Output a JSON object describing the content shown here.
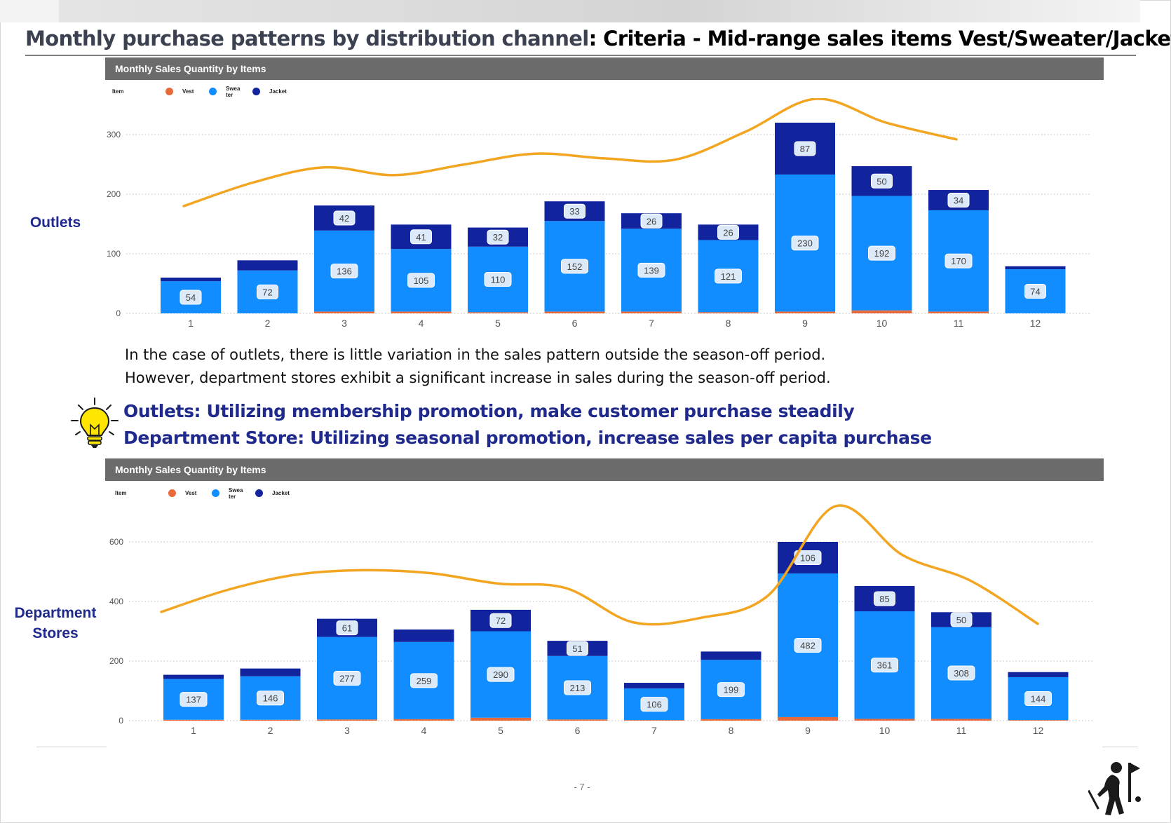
{
  "page": {
    "title_part1": "Monthly purchase patterns by distribution channel",
    "title_part2": ": Criteria - Mid-range sales items Vest/Sweater/Jacket",
    "page_number": "- 7 -",
    "logo_icon": "golfer-logo-icon",
    "bulb_icon": "lightbulb-icon"
  },
  "text": {
    "line1": "In the case of outlets, there is little variation in the sales pattern outside the season-off period.",
    "line2": "However, department stores exhibit a significant increase in sales during the season-off period.",
    "insight1": "Outlets: Utilizing membership promotion, make customer purchase steadily",
    "insight2": "Department Store: Utilizing seasonal promotion, increase sales per capita purchase"
  },
  "legend": {
    "title": "Item",
    "vest": "Vest",
    "sweater_a": "Swea",
    "sweater_b": "ter",
    "jacket": "Jacket"
  },
  "colors": {
    "vest": "#e8693a",
    "sweater": "#118dff",
    "jacket": "#12239e",
    "trend": "#f2a521",
    "header": "#6b6b6b",
    "label_blue": "#1f2a8c"
  },
  "chart_data": [
    {
      "type": "bar",
      "stacked": true,
      "title": "Monthly Sales Quantity by Items",
      "side_label": [
        "Outlets"
      ],
      "legend_title": "Item",
      "legend_position": "top-left",
      "categories": [
        "1",
        "2",
        "3",
        "4",
        "5",
        "6",
        "7",
        "8",
        "9",
        "10",
        "11",
        "12"
      ],
      "ylim": [
        0,
        300
      ],
      "yticks": [
        0,
        100,
        200,
        300
      ],
      "grid": true,
      "series": [
        {
          "name": "Vest",
          "values": [
            0,
            0,
            3,
            3,
            2,
            3,
            3,
            2,
            3,
            5,
            3,
            0
          ]
        },
        {
          "name": "Sweater",
          "values": [
            54,
            72,
            136,
            105,
            110,
            152,
            139,
            121,
            230,
            192,
            170,
            74
          ]
        },
        {
          "name": "Jacket",
          "values": [
            6,
            17,
            42,
            41,
            32,
            33,
            26,
            26,
            87,
            50,
            34,
            5
          ]
        }
      ],
      "labels": {
        "Sweater": [
          "54",
          "72",
          "136",
          "105",
          "110",
          "152",
          "139",
          "121",
          "230",
          "192",
          "170",
          "74"
        ],
        "Jacket": [
          "",
          "",
          "42",
          "41",
          "32",
          "33",
          "26",
          "26",
          "87",
          "50",
          "34",
          ""
        ]
      },
      "trend_line": [
        180,
        220,
        245,
        232,
        250,
        268,
        260,
        258,
        305,
        360,
        320,
        292
      ]
    },
    {
      "type": "bar",
      "stacked": true,
      "title": "Monthly Sales Quantity by Items",
      "side_label": [
        "Department",
        "Stores"
      ],
      "legend_title": "Item",
      "legend_position": "top-left",
      "categories": [
        "1",
        "2",
        "3",
        "4",
        "5",
        "6",
        "7",
        "8",
        "9",
        "10",
        "11",
        "12"
      ],
      "ylim": [
        0,
        600
      ],
      "yticks": [
        0,
        200,
        400,
        600
      ],
      "grid": true,
      "series": [
        {
          "name": "Vest",
          "values": [
            3,
            3,
            4,
            5,
            10,
            4,
            2,
            5,
            12,
            6,
            6,
            2
          ]
        },
        {
          "name": "Sweater",
          "values": [
            137,
            146,
            277,
            259,
            290,
            213,
            106,
            199,
            482,
            361,
            308,
            144
          ]
        },
        {
          "name": "Jacket",
          "values": [
            14,
            26,
            61,
            42,
            72,
            51,
            19,
            28,
            106,
            85,
            50,
            17
          ]
        }
      ],
      "labels": {
        "Sweater": [
          "137",
          "146",
          "277",
          "259",
          "290",
          "213",
          "106",
          "199",
          "482",
          "361",
          "308",
          "144"
        ],
        "Jacket": [
          "",
          "",
          "61",
          "",
          "72",
          "51",
          "",
          "",
          "106",
          "85",
          "50",
          ""
        ]
      },
      "trend_line": [
        365,
        440,
        490,
        505,
        495,
        460,
        445,
        330,
        345,
        420,
        720,
        555,
        470,
        325
      ]
    }
  ]
}
